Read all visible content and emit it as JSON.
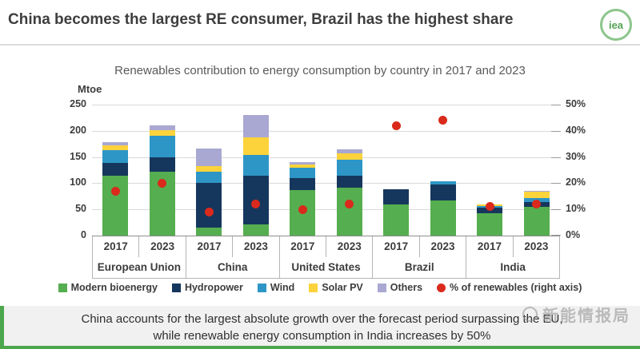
{
  "header": {
    "title": "China becomes the largest RE consumer, Brazil has the highest share",
    "logo_text": "iea"
  },
  "chart": {
    "title": "Renewables contribution to energy consumption by country in 2017 and 2023",
    "unit_label": "Mtoe"
  },
  "chart_data": {
    "type": "bar",
    "stacked": true,
    "title": "Renewables contribution to energy consumption by country in 2017 and 2023",
    "unit": "Mtoe",
    "groups": [
      "European Union",
      "China",
      "United States",
      "Brazil",
      "India"
    ],
    "years": [
      "2017",
      "2023"
    ],
    "bar_labels": [
      "2017",
      "2023",
      "2017",
      "2023",
      "2017",
      "2023",
      "2017",
      "2023",
      "2017",
      "2023"
    ],
    "left_axis": {
      "label": "Mtoe",
      "min": 0,
      "max": 250,
      "step": 50,
      "ticks": [
        "250",
        "200",
        "150",
        "100",
        "50",
        "0"
      ]
    },
    "right_axis": {
      "min": 0,
      "max": 50,
      "step": 10,
      "ticks": [
        "50%",
        "40%",
        "30%",
        "20%",
        "10%",
        "0%"
      ]
    },
    "grid": true,
    "legend_position": "bottom",
    "series": [
      {
        "name": "Modern bioenergy",
        "color": "#55ae4f",
        "values": [
          114,
          122,
          15,
          21,
          87,
          92,
          59,
          67,
          43,
          55
        ]
      },
      {
        "name": "Hydropower",
        "color": "#16375d",
        "values": [
          24,
          27,
          85,
          93,
          23,
          22,
          29,
          31,
          10,
          9
        ]
      },
      {
        "name": "Wind",
        "color": "#2d96c6",
        "values": [
          25,
          41,
          22,
          40,
          20,
          31,
          0,
          5,
          4,
          8
        ]
      },
      {
        "name": "Solar PV",
        "color": "#fcd33b",
        "values": [
          10,
          11,
          10,
          33,
          6,
          12,
          0,
          0,
          2,
          12
        ]
      },
      {
        "name": "Others",
        "color": "#a9a8d3",
        "values": [
          6,
          10,
          34,
          43,
          5,
          8,
          0,
          0,
          0,
          2
        ]
      }
    ],
    "point_series": {
      "name": "% of renewables (right axis)",
      "color": "#d92a1c",
      "axis": "right",
      "values": [
        17,
        20,
        9,
        12,
        10,
        12,
        42,
        44,
        11,
        12
      ]
    }
  },
  "caption": {
    "line1": "China accounts for the largest absolute growth over the forecast period surpassing the EU,",
    "line2": "while renewable energy consumption in India increases by 50%"
  },
  "watermark": {
    "text": "新能情报局"
  }
}
